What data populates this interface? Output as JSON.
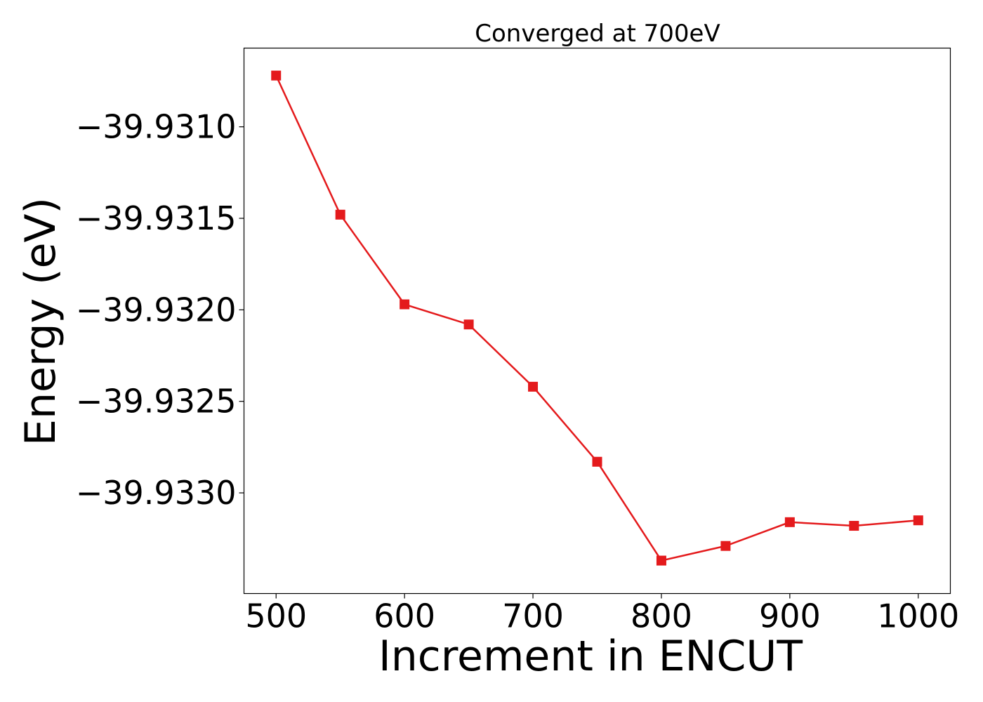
{
  "chart_data": {
    "type": "line",
    "title": "Converged at 700eV",
    "xlabel": "Increment in ENCUT",
    "ylabel": "Energy (eV)",
    "xlim": [
      475,
      1025
    ],
    "ylim": [
      -39.93355,
      -39.93057
    ],
    "x_ticks": [
      500,
      600,
      700,
      800,
      900,
      1000
    ],
    "x_tick_labels": [
      "500",
      "600",
      "700",
      "800",
      "900",
      "1000"
    ],
    "y_ticks": [
      -39.931,
      -39.9315,
      -39.932,
      -39.9325,
      -39.933
    ],
    "y_tick_labels": [
      "−39.9310",
      "−39.9315",
      "−39.9320",
      "−39.9325",
      "−39.9330"
    ],
    "grid": false,
    "series": [
      {
        "color": "#e41a1c",
        "marker": "square",
        "x": [
          500,
          550,
          600,
          650,
          700,
          750,
          800,
          850,
          900,
          950,
          1000
        ],
        "y": [
          -39.93072,
          -39.93148,
          -39.93197,
          -39.93208,
          -39.93242,
          -39.93283,
          -39.93337,
          -39.93329,
          -39.93316,
          -39.93318,
          -39.93315
        ]
      }
    ]
  }
}
